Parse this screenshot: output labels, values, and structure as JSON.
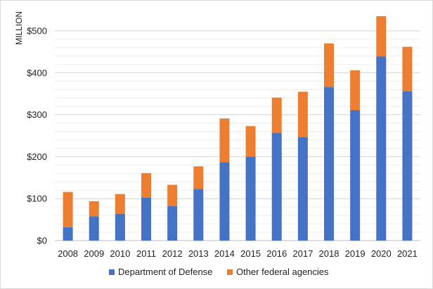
{
  "chart_data": {
    "type": "bar",
    "stacked": true,
    "ylabel": "MILLION",
    "xlabel": "",
    "title": "",
    "ylim": [
      0,
      500
    ],
    "yticks": [
      0,
      100,
      200,
      300,
      400,
      500
    ],
    "ytick_labels": [
      "$0",
      "$100",
      "$200",
      "$300",
      "$400",
      "$500"
    ],
    "grid": true,
    "legend_position": "bottom",
    "categories": [
      "2008",
      "2009",
      "2010",
      "2011",
      "2012",
      "2013",
      "2014",
      "2015",
      "2016",
      "2017",
      "2018",
      "2019",
      "2020",
      "2021"
    ],
    "series": [
      {
        "name": "Department of Defense",
        "color": "#4472C4",
        "values": [
          32,
          58,
          64,
          102,
          82,
          123,
          187,
          200,
          257,
          247,
          366,
          311,
          439,
          356
        ]
      },
      {
        "name": "Other federal agencies",
        "color": "#ED7D31",
        "values": [
          84,
          36,
          47,
          59,
          51,
          54,
          104,
          73,
          84,
          108,
          104,
          95,
          96,
          106
        ]
      }
    ]
  }
}
